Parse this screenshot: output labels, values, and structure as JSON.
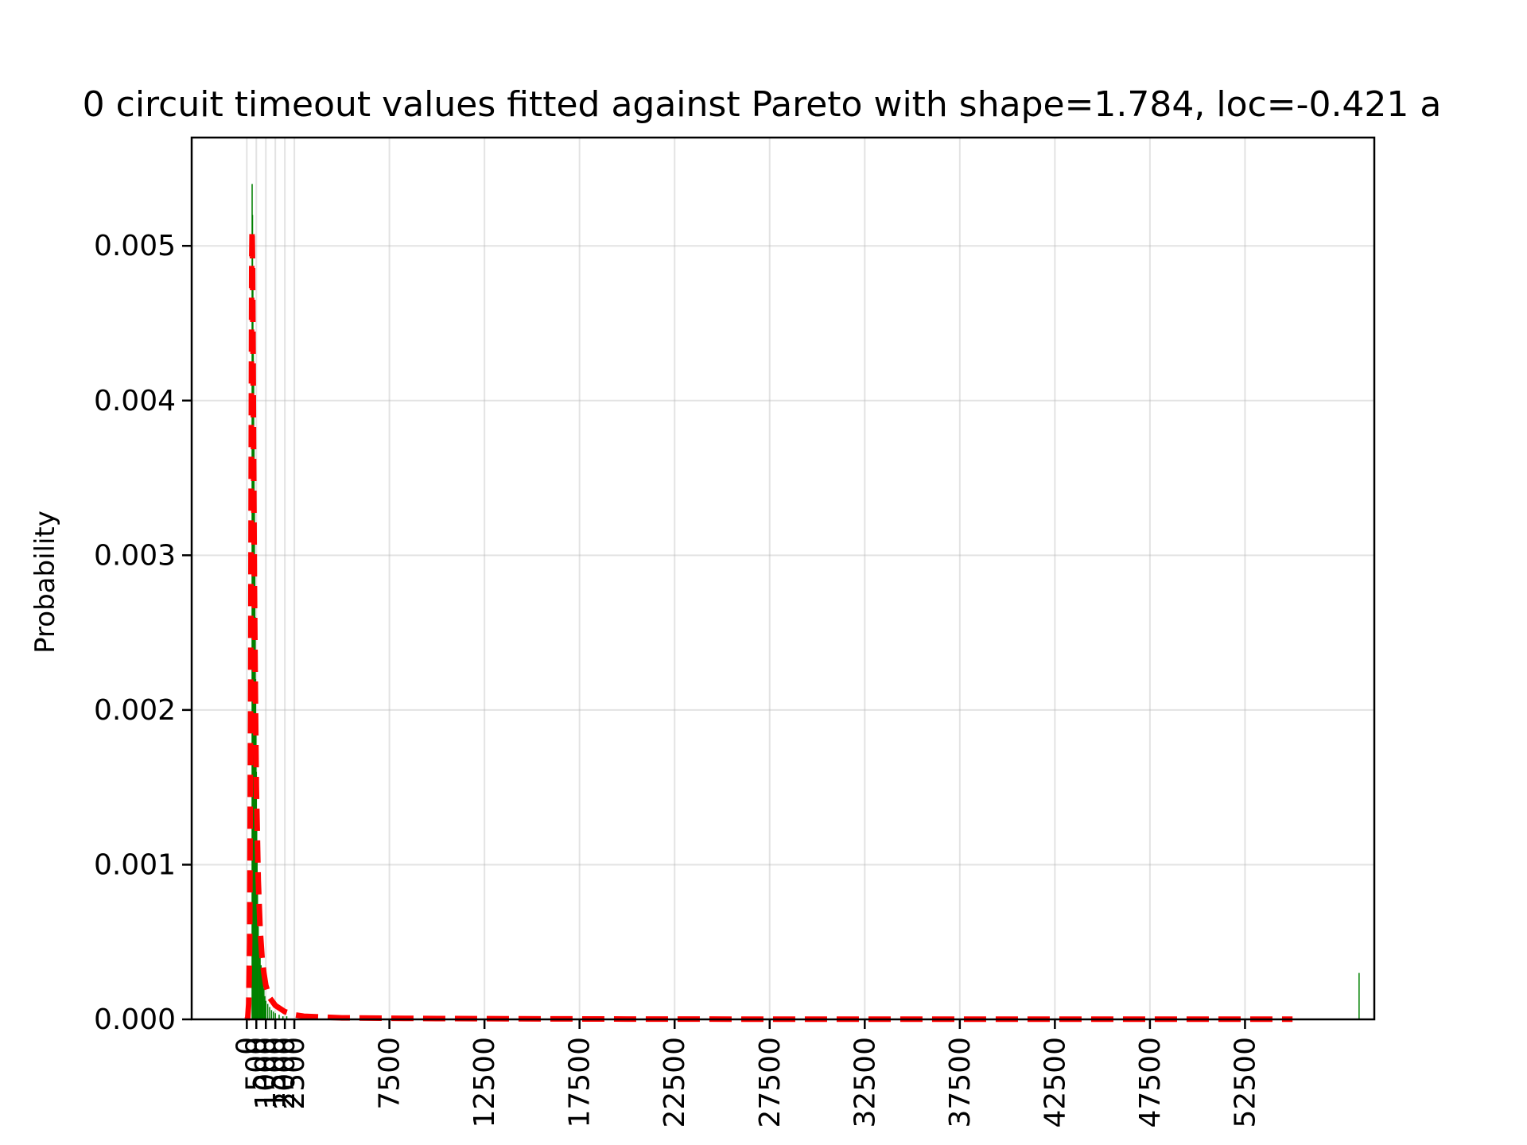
{
  "chart_data": {
    "type": "bar",
    "title": "0 circuit timeout values fitted against Pareto with shape=1.784, loc=-0.421 a",
    "xlabel": "",
    "ylabel": "Probability",
    "xlim": [
      -2900,
      59300
    ],
    "ylim": [
      0,
      0.0057
    ],
    "yticks": [
      0.0,
      0.001,
      0.002,
      0.003,
      0.004,
      0.005
    ],
    "ytick_labels": [
      "0.000",
      "0.001",
      "0.002",
      "0.003",
      "0.004",
      "0.005"
    ],
    "xticks": [
      0,
      500,
      1000,
      1500,
      2000,
      2500,
      7500,
      12500,
      17500,
      22500,
      27500,
      32500,
      37500,
      42500,
      47500,
      52500
    ],
    "xtick_labels": [
      "0",
      "500",
      "1000",
      "1500",
      "2000",
      "2500",
      "7500",
      "12500",
      "17500",
      "22500",
      "27500",
      "32500",
      "37500",
      "42500",
      "47500",
      "52500"
    ],
    "grid": true,
    "histogram": {
      "name": "",
      "color": "#008000",
      "bin_width": 15,
      "x": [
        280,
        300,
        320,
        340,
        360,
        380,
        400,
        420,
        440,
        460,
        480,
        500,
        520,
        540,
        560,
        580,
        600,
        650,
        700,
        750,
        800,
        850,
        900,
        950,
        1000,
        1100,
        1200,
        1300,
        1400,
        1500,
        1700,
        1900,
        2100,
        58500
      ],
      "values": [
        0.0054,
        0.0052,
        0.0048,
        0.0044,
        0.0042,
        0.0038,
        0.0034,
        0.003,
        0.0026,
        0.0022,
        0.0019,
        0.0016,
        0.0013,
        0.0011,
        0.0009,
        0.0007,
        0.0006,
        0.0005,
        0.0004,
        0.00035,
        0.0003,
        0.00025,
        0.0002,
        0.00015,
        0.00012,
        0.0001,
        8e-05,
        6e-05,
        5e-05,
        4e-05,
        3e-05,
        2e-05,
        2e-05,
        0.0003
      ]
    },
    "fit_line": {
      "name": "",
      "color": "#ff0000",
      "style": "dashed",
      "x": [
        0,
        50,
        100,
        150,
        200,
        250,
        260,
        280,
        300,
        330,
        360,
        400,
        450,
        500,
        600,
        700,
        800,
        900,
        1000,
        1200,
        1500,
        2000,
        2500,
        3000,
        5000,
        10000,
        20000,
        30000,
        40000,
        50000,
        55000
      ],
      "values": [
        0,
        1e-05,
        0.0001,
        0.0005,
        0.002,
        0.0045,
        0.0049,
        0.0051,
        0.0049,
        0.0043,
        0.0036,
        0.0028,
        0.0021,
        0.0015,
        0.0009,
        0.00058,
        0.0004,
        0.0003,
        0.00022,
        0.00014,
        9e-05,
        5e-05,
        3e-05,
        2e-05,
        1e-05,
        5e-06,
        2e-06,
        1e-06,
        1e-06,
        1e-06,
        1e-06
      ]
    }
  }
}
